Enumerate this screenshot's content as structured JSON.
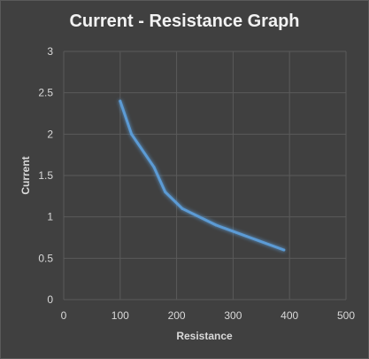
{
  "chart_data": {
    "type": "line",
    "title": "Current - Resistance Graph",
    "xlabel": "Resistance",
    "ylabel": "Current",
    "xlim": [
      0,
      500
    ],
    "ylim": [
      0,
      3
    ],
    "xticks": [
      "0",
      "100",
      "200",
      "300",
      "400",
      "500"
    ],
    "yticks": [
      "0",
      "0.5",
      "1",
      "1.5",
      "2",
      "2.5",
      "3"
    ],
    "grid": true,
    "series": [
      {
        "color": "#5b9bd5",
        "points": [
          {
            "x": 100,
            "y": 2.4
          },
          {
            "x": 120,
            "y": 2.0
          },
          {
            "x": 160,
            "y": 1.6
          },
          {
            "x": 180,
            "y": 1.3
          },
          {
            "x": 210,
            "y": 1.1
          },
          {
            "x": 270,
            "y": 0.9
          },
          {
            "x": 390,
            "y": 0.6
          }
        ]
      }
    ]
  }
}
